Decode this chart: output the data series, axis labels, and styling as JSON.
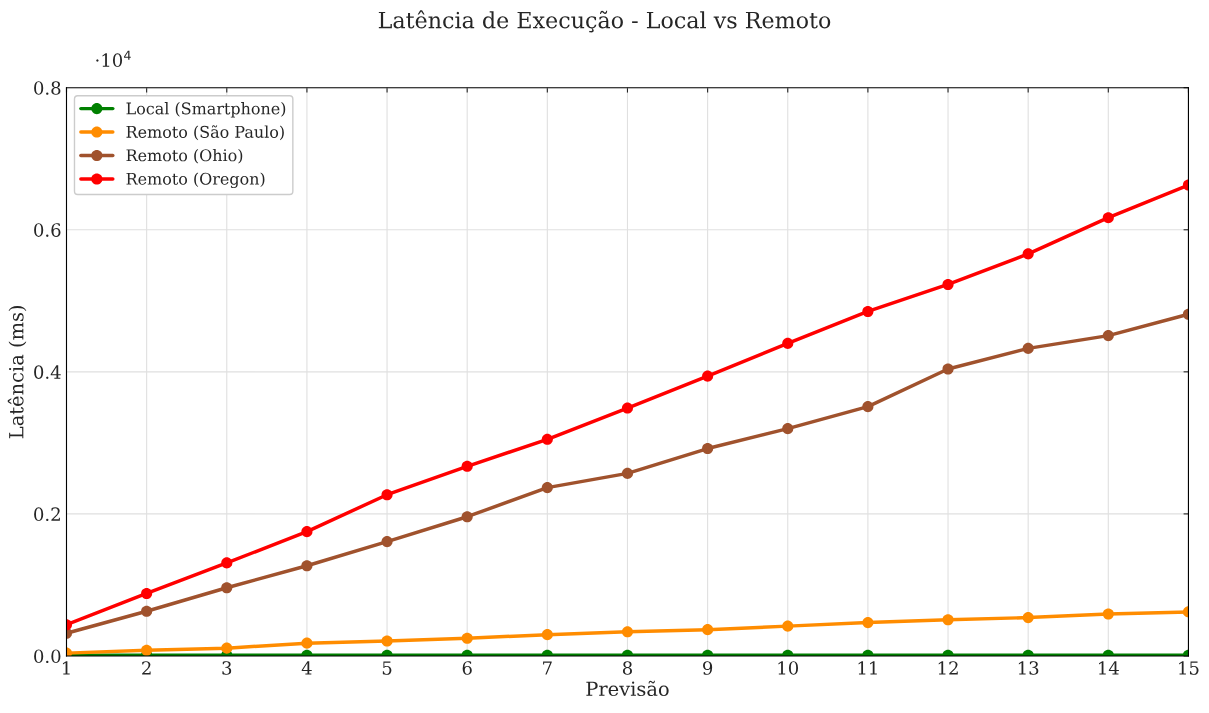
{
  "chart_data": {
    "type": "line",
    "title": "Latência de Execução - Local vs Remoto",
    "xlabel": "Previsão",
    "ylabel": "Latência (ms)",
    "x": [
      1,
      2,
      3,
      4,
      5,
      6,
      7,
      8,
      9,
      10,
      11,
      12,
      13,
      14,
      15
    ],
    "series": [
      {
        "name": "Local (Smartphone)",
        "color": "#008000",
        "values": [
          0.001,
          0.001,
          0.001,
          0.001,
          0.001,
          0.001,
          0.001,
          0.001,
          0.001,
          0.001,
          0.001,
          0.001,
          0.001,
          0.001,
          0.001
        ]
      },
      {
        "name": "Remoto (São Paulo)",
        "color": "#ff8c00",
        "values": [
          0.004,
          0.008,
          0.011,
          0.018,
          0.021,
          0.025,
          0.03,
          0.034,
          0.037,
          0.042,
          0.047,
          0.051,
          0.054,
          0.059,
          0.062
        ]
      },
      {
        "name": "Remoto (Ohio)",
        "color": "#a0522d",
        "values": [
          0.032,
          0.063,
          0.096,
          0.127,
          0.161,
          0.196,
          0.237,
          0.257,
          0.292,
          0.32,
          0.351,
          0.404,
          0.433,
          0.451,
          0.481
        ]
      },
      {
        "name": "Remoto (Oregon)",
        "color": "#ff0000",
        "values": [
          0.044,
          0.088,
          0.131,
          0.175,
          0.227,
          0.267,
          0.305,
          0.349,
          0.394,
          0.44,
          0.485,
          0.523,
          0.566,
          0.617,
          0.663
        ]
      }
    ],
    "xlim": [
      1,
      15
    ],
    "xticks": [
      1,
      2,
      3,
      4,
      5,
      6,
      7,
      8,
      9,
      10,
      11,
      12,
      13,
      14,
      15
    ],
    "ylim": [
      0,
      0.8
    ],
    "yticks": [
      {
        "value": 0,
        "label": "0.0"
      },
      0.2,
      0.4,
      0.6,
      0.8
    ],
    "annotations": [
      "·10$^{4}$"
    ],
    "grid": true,
    "legend": "top left",
    "marker": "circle",
    "line_style": "solid"
  }
}
